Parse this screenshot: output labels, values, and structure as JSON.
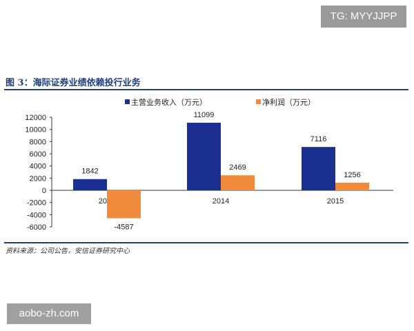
{
  "watermarks": {
    "top": "TG: MYYJJPP",
    "bottom": "aobo-zh.com"
  },
  "figure_title": "图 3：海际证券业绩依赖投行业务",
  "source": "资料来源：公司公告，安信证券研究中心",
  "chart_data": {
    "type": "bar",
    "categories": [
      "2013",
      "2014",
      "2015"
    ],
    "series": [
      {
        "name": "主营业务收入（万元）",
        "values": [
          1842,
          11099,
          7116
        ],
        "color": "#1a2f8f"
      },
      {
        "name": "净利润（万元）",
        "values": [
          -4587,
          2469,
          1256
        ],
        "color": "#f08a3c"
      }
    ],
    "ylim": [
      -6000,
      12000
    ],
    "yticks": [
      12000,
      10000,
      8000,
      6000,
      4000,
      2000,
      0,
      -2000,
      -4000,
      -6000
    ],
    "grid": false,
    "legend": "top",
    "data_labels": true
  }
}
